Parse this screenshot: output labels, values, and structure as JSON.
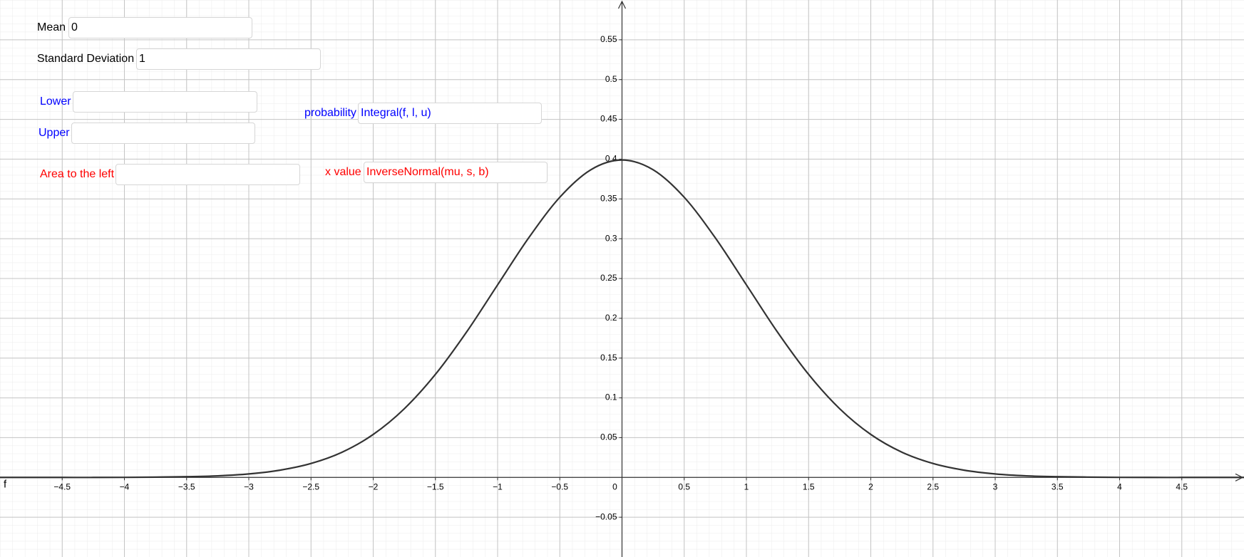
{
  "inputs": {
    "mean": {
      "label": "Mean",
      "value": 0
    },
    "sd": {
      "label": "Standard Deviation",
      "value": 1
    },
    "lower": {
      "label": "Lower"
    },
    "upper": {
      "label": "Upper"
    },
    "probability": {
      "label": "probability",
      "value": "Integral(f, l, u)"
    },
    "area_left": {
      "label": "Area to the left"
    },
    "x_value": {
      "label": "x value",
      "value": "InverseNormal(mu, s, b)"
    }
  },
  "chart_data": {
    "type": "line",
    "function_label": "f",
    "color": "#333333",
    "grid": true,
    "minor_grid": true,
    "x": [
      -5,
      -4.75,
      -4.5,
      -4.25,
      -4,
      -3.75,
      -3.5,
      -3.25,
      -3,
      -2.75,
      -2.5,
      -2.25,
      -2,
      -1.75,
      -1.5,
      -1.25,
      -1,
      -0.75,
      -0.5,
      -0.25,
      0,
      0.25,
      0.5,
      0.75,
      1,
      1.25,
      1.5,
      1.75,
      2,
      2.25,
      2.5,
      2.75,
      3,
      3.25,
      3.5,
      3.75,
      4,
      4.25,
      4.5,
      4.75,
      5
    ],
    "values": [
      0,
      0,
      0,
      0,
      0.0001,
      0.0004,
      0.0009,
      0.002,
      0.0044,
      0.0091,
      0.0175,
      0.0317,
      0.054,
      0.0863,
      0.1295,
      0.1826,
      0.242,
      0.3011,
      0.3521,
      0.3867,
      0.3989,
      0.3867,
      0.3521,
      0.3011,
      0.242,
      0.1826,
      0.1295,
      0.0863,
      0.054,
      0.0317,
      0.0175,
      0.0091,
      0.0044,
      0.002,
      0.0009,
      0.0004,
      0.0001,
      0,
      0,
      0,
      0
    ],
    "xlim": [
      -5,
      5
    ],
    "ylim": [
      -0.1,
      0.6
    ],
    "xticks": [
      {
        "value": -4.5,
        "label": "−4.5"
      },
      {
        "value": -4,
        "label": "−4"
      },
      {
        "value": -3.5,
        "label": "−3.5"
      },
      {
        "value": -3,
        "label": "−3"
      },
      {
        "value": -2.5,
        "label": "−2.5"
      },
      {
        "value": -2,
        "label": "−2"
      },
      {
        "value": -1.5,
        "label": "−1.5"
      },
      {
        "value": -1,
        "label": "−1"
      },
      {
        "value": -0.5,
        "label": "−0.5"
      },
      0,
      0.5,
      1,
      1.5,
      2,
      2.5,
      3,
      3.5,
      4,
      4.5
    ],
    "yticks": [
      {
        "value": -0.05,
        "label": "−0.05"
      },
      0.05,
      0.1,
      0.15,
      0.2,
      0.25,
      0.3,
      0.35,
      0.4,
      0.45,
      0.5,
      0.55
    ]
  }
}
